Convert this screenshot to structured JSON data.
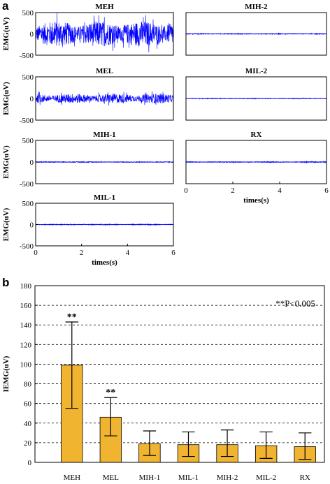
{
  "panel_labels": {
    "a": "a",
    "b": "b"
  },
  "colors": {
    "trace": "#0000ff",
    "bar": "#f0b430",
    "bar_edge": "#000000"
  },
  "chart_data": [
    {
      "type": "line",
      "title": "MEH",
      "ylabel": "EMG(uV)",
      "xlabel": "",
      "xlim": [
        0,
        6
      ],
      "ylim": [
        -500,
        500
      ],
      "yticks": [
        "500",
        "0",
        "-500"
      ],
      "xticks": [],
      "signal": {
        "amplitude_uV": 400,
        "description_level": "high"
      }
    },
    {
      "type": "line",
      "title": "MIH-2",
      "ylabel": "",
      "xlabel": "",
      "xlim": [
        0,
        6
      ],
      "ylim": [
        -500,
        500
      ],
      "yticks": [],
      "xticks": [],
      "signal": {
        "amplitude_uV": 10
      }
    },
    {
      "type": "line",
      "title": "MEL",
      "ylabel": "EMG(uV)",
      "xlabel": "",
      "xlim": [
        0,
        6
      ],
      "ylim": [
        -500,
        500
      ],
      "yticks": [
        "500",
        "0",
        "-500"
      ],
      "xticks": [],
      "signal": {
        "amplitude_uV": 150
      }
    },
    {
      "type": "line",
      "title": "MIL-2",
      "ylabel": "",
      "xlabel": "",
      "xlim": [
        0,
        6
      ],
      "ylim": [
        -500,
        500
      ],
      "yticks": [],
      "xticks": [],
      "signal": {
        "amplitude_uV": 8
      }
    },
    {
      "type": "line",
      "title": "MIH-1",
      "ylabel": "EMG(uV)",
      "xlabel": "",
      "xlim": [
        0,
        6
      ],
      "ylim": [
        -500,
        500
      ],
      "yticks": [
        "500",
        "0",
        "-500"
      ],
      "xticks": [],
      "signal": {
        "amplitude_uV": 10
      }
    },
    {
      "type": "line",
      "title": "RX",
      "ylabel": "",
      "xlabel": "times(s)",
      "xlim": [
        0,
        6
      ],
      "ylim": [
        -500,
        500
      ],
      "yticks": [],
      "xticks": [
        "0",
        "2",
        "4",
        "6"
      ],
      "signal": {
        "amplitude_uV": 10
      }
    },
    {
      "type": "line",
      "title": "MIL-1",
      "ylabel": "EMG(uV)",
      "xlabel": "times(s)",
      "xlim": [
        0,
        6
      ],
      "ylim": [
        -500,
        500
      ],
      "yticks": [
        "500",
        "0",
        "-500"
      ],
      "xticks": [
        "0",
        "2",
        "4",
        "6"
      ],
      "signal": {
        "amplitude_uV": 10
      }
    },
    {
      "type": "bar",
      "title": "",
      "ylabel": "IEMG(uV)",
      "xlabel": "",
      "categories": [
        "MEH",
        "MEL",
        "MIH-1",
        "MIL-1",
        "MIH-2",
        "MIL-2",
        "RX"
      ],
      "values": [
        99,
        46,
        19,
        18,
        18,
        17,
        16
      ],
      "error_low": [
        55,
        27,
        7,
        6,
        6,
        4,
        3
      ],
      "error_high": [
        143,
        66,
        32,
        31,
        33,
        31,
        30
      ],
      "significance": [
        "**",
        "**",
        "",
        "",
        "",
        "",
        ""
      ],
      "ylim": [
        0,
        180
      ],
      "yticks": [
        "0",
        "20",
        "40",
        "60",
        "80",
        "100",
        "120",
        "140",
        "160",
        "180"
      ],
      "grid": "dashed horizontal",
      "annotation": "**P<0.005"
    }
  ]
}
